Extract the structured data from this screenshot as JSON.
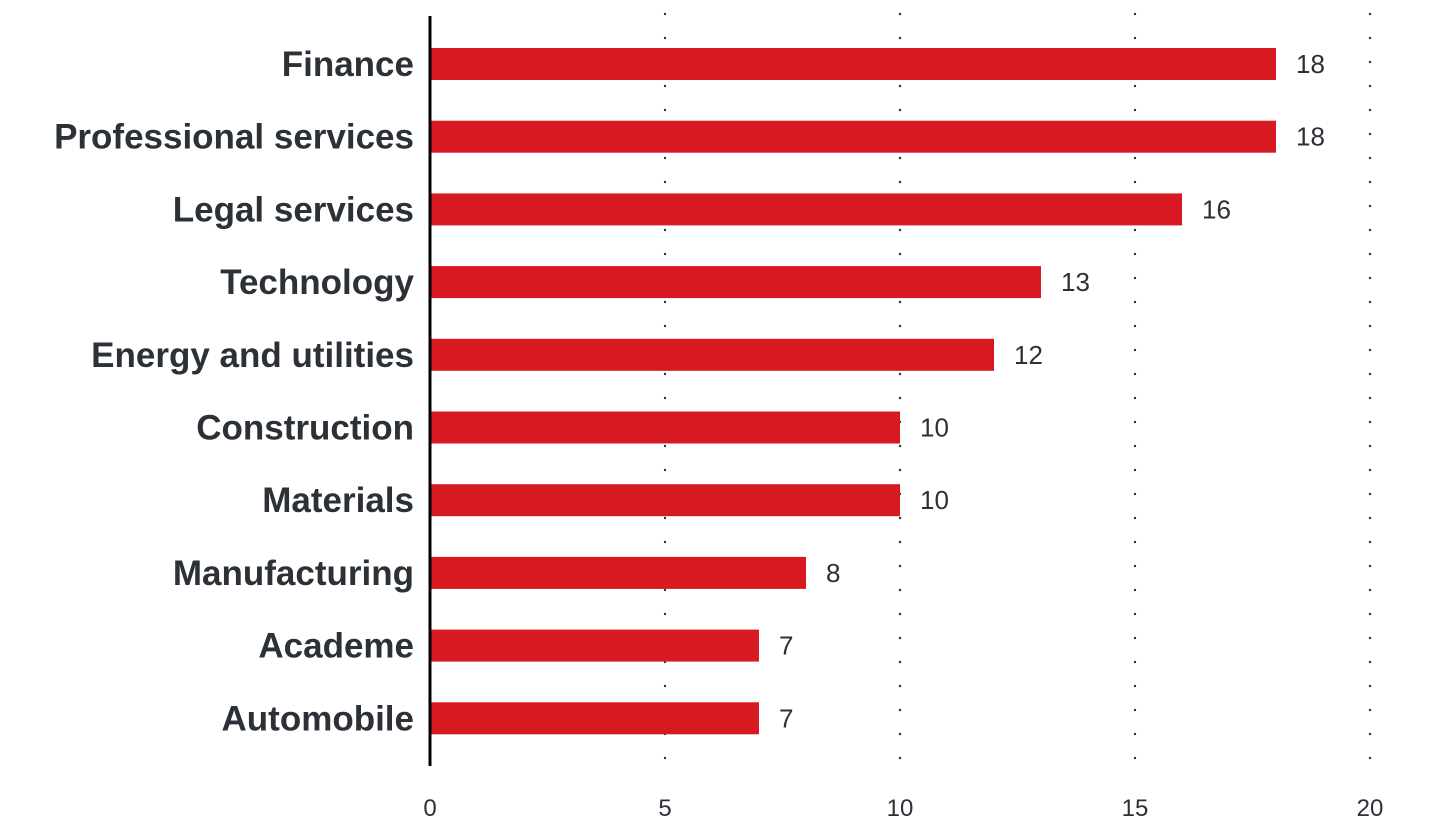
{
  "chart_data": {
    "type": "bar",
    "orientation": "horizontal",
    "title": "",
    "xlabel": "",
    "ylabel": "",
    "categories": [
      "Finance",
      "Professional services",
      "Legal services",
      "Technology",
      "Energy and utilities",
      "Construction",
      "Materials",
      "Manufacturing",
      "Academe",
      "Automobile"
    ],
    "values": [
      18,
      18,
      16,
      13,
      12,
      10,
      10,
      8,
      7,
      7
    ],
    "xlim": [
      0,
      20
    ],
    "xticks": [
      0,
      5,
      10,
      15,
      20
    ],
    "grid": "vertical-dotted",
    "legend": "none",
    "data_labels": true,
    "colors": {
      "bar": "#d71921",
      "text": "#2b3137",
      "axis": "#000000",
      "grid": "#2b3137"
    }
  }
}
